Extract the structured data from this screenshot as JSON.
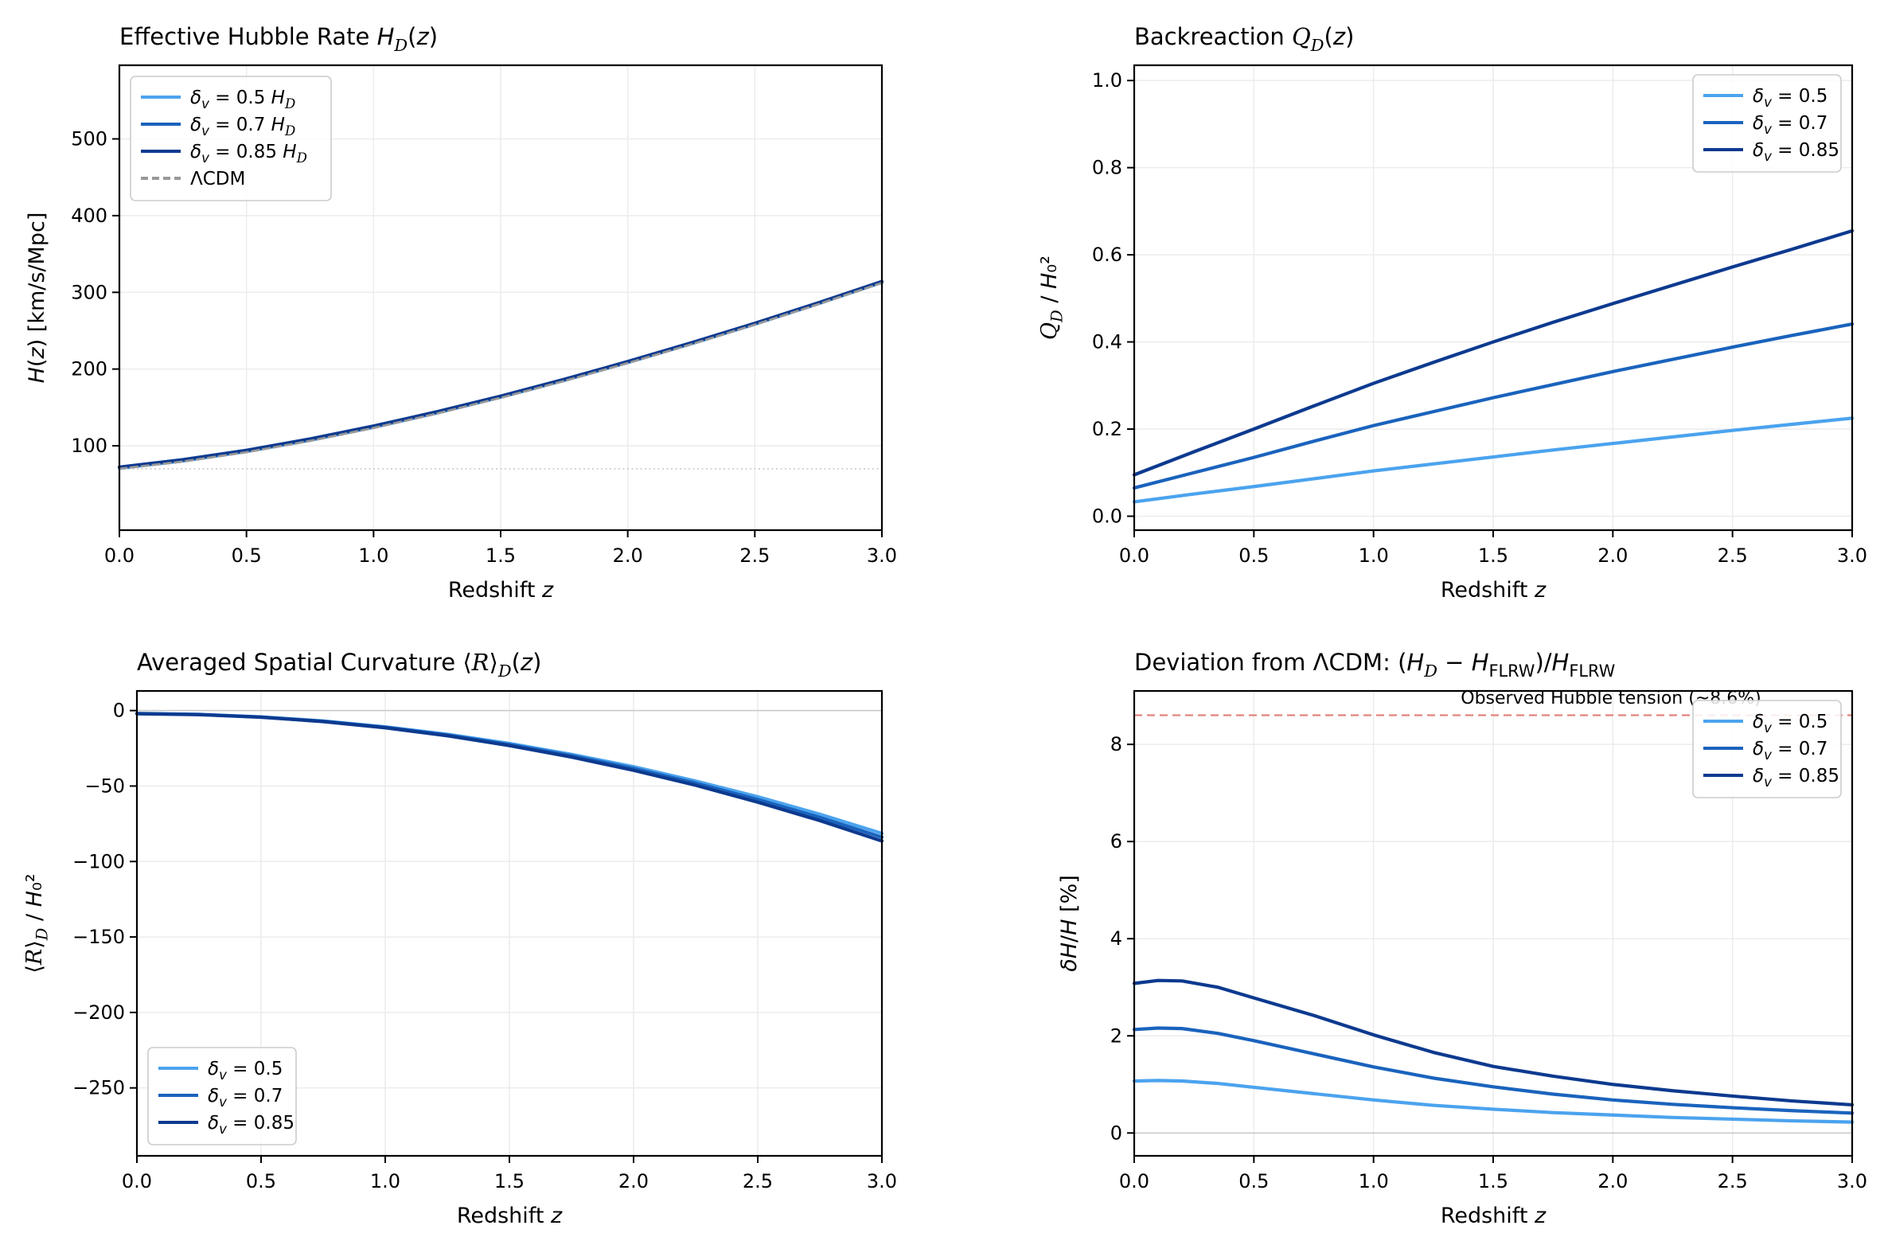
{
  "colors": {
    "light_blue": "#4ba3ee",
    "medium_blue": "#1a63bd",
    "dark_blue": "#0d3a8f",
    "lcdm_gray": "#999999",
    "grid": "#ececec",
    "spine": "#000000",
    "hline_h0": "#c9c9c9",
    "zero_line": "#c9c9c9",
    "tension_line": "#e2847d",
    "tension_text": "#c63a2c",
    "legend_border": "#cccccc",
    "legend_bg": "#ffffff"
  },
  "chart_data": [
    {
      "id": "hubble-rate",
      "type": "line",
      "title": [
        {
          "t": "Effective Hubble Rate "
        },
        {
          "t": "H",
          "it": 1
        },
        {
          "t": "D",
          "scr": 1,
          "sub": 1
        },
        {
          "t": "("
        },
        {
          "t": "z",
          "it": 1
        },
        {
          "t": ")"
        }
      ],
      "xlabel": [
        {
          "t": "Redshift "
        },
        {
          "t": "z",
          "it": 1
        }
      ],
      "ylabel": [
        {
          "t": "H",
          "it": 1
        },
        {
          "t": "("
        },
        {
          "t": "z",
          "it": 1
        },
        {
          "t": ") [km/s/Mpc]"
        }
      ],
      "xlim": [
        0,
        3
      ],
      "ylim": [
        -10,
        596
      ],
      "xticks": [
        {
          "v": 0,
          "l": "0.0"
        },
        {
          "v": 0.5,
          "l": "0.5"
        },
        {
          "v": 1,
          "l": "1.0"
        },
        {
          "v": 1.5,
          "l": "1.5"
        },
        {
          "v": 2,
          "l": "2.0"
        },
        {
          "v": 2.5,
          "l": "2.5"
        },
        {
          "v": 3,
          "l": "3.0"
        }
      ],
      "yticks": [
        {
          "v": 100,
          "l": "100"
        },
        {
          "v": 200,
          "l": "200"
        },
        {
          "v": 300,
          "l": "300"
        },
        {
          "v": 400,
          "l": "400"
        },
        {
          "v": 500,
          "l": "500"
        }
      ],
      "x": [
        0,
        0.25,
        0.5,
        0.75,
        1,
        1.25,
        1.5,
        1.75,
        2,
        2.25,
        2.5,
        2.75,
        3
      ],
      "series": [
        {
          "label": [
            {
              "t": "δ",
              "it": 1
            },
            {
              "t": "v",
              "it": 1,
              "sub": 1
            },
            {
              "t": " = 0.5 "
            },
            {
              "t": "H",
              "it": 1
            },
            {
              "t": "D",
              "scr": 1,
              "sub": 1
            }
          ],
          "color_ref": "light_blue",
          "width": 4.2,
          "y": [
            70.7,
            80.2,
            92.5,
            107.2,
            124.0,
            142.8,
            163.3,
            185.2,
            208.5,
            232.9,
            258.5,
            285.2,
            313.0
          ]
        },
        {
          "label": [
            {
              "t": "δ",
              "it": 1
            },
            {
              "t": "v",
              "it": 1,
              "sub": 1
            },
            {
              "t": " = 0.7 "
            },
            {
              "t": "H",
              "it": 1
            },
            {
              "t": "D",
              "scr": 1,
              "sub": 1
            }
          ],
          "color_ref": "medium_blue",
          "width": 4.2,
          "y": [
            71.5,
            81.1,
            93.3,
            108.0,
            124.9,
            143.6,
            164.0,
            185.9,
            209.1,
            233.6,
            259.1,
            285.8,
            313.6
          ]
        },
        {
          "label": [
            {
              "t": "δ",
              "it": 1
            },
            {
              "t": "v",
              "it": 1,
              "sub": 1
            },
            {
              "t": " = 0.85 "
            },
            {
              "t": "H",
              "it": 1
            },
            {
              "t": "D",
              "scr": 1,
              "sub": 1
            }
          ],
          "color_ref": "dark_blue",
          "width": 4.2,
          "y": [
            72.2,
            81.9,
            94.1,
            108.9,
            125.7,
            144.4,
            164.7,
            186.6,
            209.8,
            234.2,
            259.7,
            286.4,
            314.1
          ]
        },
        {
          "label": [
            {
              "t": "ΛCDM"
            }
          ],
          "color_ref": "lcdm_gray",
          "width": 2.8,
          "dash": [
            9,
            5
          ],
          "y": [
            70.0,
            79.4,
            91.6,
            106.3,
            123.2,
            142.0,
            162.5,
            184.4,
            207.7,
            232.2,
            257.8,
            284.5,
            312.3
          ]
        }
      ],
      "legend": {
        "loc": "tl",
        "entries": [
          0,
          1,
          2,
          3
        ]
      },
      "annotations": [
        {
          "kind": "hline",
          "y": 70,
          "layer": "under",
          "color_ref": "hline_h0",
          "width": 1.6,
          "dash": [
            2,
            3.5
          ]
        }
      ]
    },
    {
      "id": "backreaction",
      "type": "line",
      "title": [
        {
          "t": "Backreaction "
        },
        {
          "t": "Q",
          "scr": 1
        },
        {
          "t": "D",
          "scr": 1,
          "sub": 1
        },
        {
          "t": "("
        },
        {
          "t": "z",
          "it": 1
        },
        {
          "t": ")"
        }
      ],
      "xlabel": [
        {
          "t": "Redshift "
        },
        {
          "t": "z",
          "it": 1
        }
      ],
      "ylabel": [
        {
          "t": "Q",
          "scr": 1
        },
        {
          "t": "D",
          "scr": 1,
          "sub": 1
        },
        {
          "t": " / "
        },
        {
          "t": "H",
          "it": 1
        },
        {
          "t": "₀²"
        }
      ],
      "xlim": [
        0,
        3
      ],
      "ylim": [
        -0.032,
        1.035
      ],
      "xticks": [
        {
          "v": 0,
          "l": "0.0"
        },
        {
          "v": 0.5,
          "l": "0.5"
        },
        {
          "v": 1,
          "l": "1.0"
        },
        {
          "v": 1.5,
          "l": "1.5"
        },
        {
          "v": 2,
          "l": "2.0"
        },
        {
          "v": 2.5,
          "l": "2.5"
        },
        {
          "v": 3,
          "l": "3.0"
        }
      ],
      "yticks": [
        {
          "v": 0,
          "l": "0.0"
        },
        {
          "v": 0.2,
          "l": "0.2"
        },
        {
          "v": 0.4,
          "l": "0.4"
        },
        {
          "v": 0.6,
          "l": "0.6"
        },
        {
          "v": 0.8,
          "l": "0.8"
        },
        {
          "v": 1,
          "l": "1.0"
        }
      ],
      "x": [
        0,
        0.25,
        0.5,
        0.75,
        1,
        1.25,
        1.5,
        1.75,
        2,
        2.25,
        2.5,
        2.75,
        3
      ],
      "series": [
        {
          "label": [
            {
              "t": "δ",
              "it": 1
            },
            {
              "t": "v",
              "it": 1,
              "sub": 1
            },
            {
              "t": " = 0.5"
            }
          ],
          "color_ref": "light_blue",
          "width": 4.2,
          "y": [
            0.033,
            0.051,
            0.068,
            0.086,
            0.104,
            0.12,
            0.136,
            0.152,
            0.167,
            0.182,
            0.197,
            0.211,
            0.225
          ]
        },
        {
          "label": [
            {
              "t": "δ",
              "it": 1
            },
            {
              "t": "v",
              "it": 1,
              "sub": 1
            },
            {
              "t": " = 0.7"
            }
          ],
          "color_ref": "medium_blue",
          "width": 4.2,
          "y": [
            0.065,
            0.1,
            0.135,
            0.172,
            0.208,
            0.24,
            0.272,
            0.302,
            0.332,
            0.36,
            0.388,
            0.415,
            0.441
          ]
        },
        {
          "label": [
            {
              "t": "δ",
              "it": 1
            },
            {
              "t": "v",
              "it": 1,
              "sub": 1
            },
            {
              "t": " = 0.85"
            }
          ],
          "color_ref": "dark_blue",
          "width": 4.2,
          "y": [
            0.095,
            0.148,
            0.2,
            0.253,
            0.305,
            0.353,
            0.4,
            0.445,
            0.488,
            0.53,
            0.572,
            0.613,
            0.655
          ]
        }
      ],
      "legend": {
        "loc": "tr",
        "entries": [
          0,
          1,
          2
        ]
      },
      "annotations": []
    },
    {
      "id": "curvature",
      "type": "line",
      "title": [
        {
          "t": "Averaged Spatial Curvature ⟨"
        },
        {
          "t": "R",
          "scr": 1
        },
        {
          "t": "⟩"
        },
        {
          "t": "D",
          "scr": 1,
          "sub": 1
        },
        {
          "t": "("
        },
        {
          "t": "z",
          "it": 1
        },
        {
          "t": ")"
        }
      ],
      "xlabel": [
        {
          "t": "Redshift "
        },
        {
          "t": "z",
          "it": 1
        }
      ],
      "ylabel": [
        {
          "t": "⟨"
        },
        {
          "t": "R",
          "scr": 1
        },
        {
          "t": "⟩"
        },
        {
          "t": "D",
          "scr": 1,
          "sub": 1
        },
        {
          "t": " / "
        },
        {
          "t": "H",
          "it": 1
        },
        {
          "t": "₀²"
        }
      ],
      "xlim": [
        0,
        3
      ],
      "ylim": [
        -295,
        13
      ],
      "xticks": [
        {
          "v": 0,
          "l": "0.0"
        },
        {
          "v": 0.5,
          "l": "0.5"
        },
        {
          "v": 1,
          "l": "1.0"
        },
        {
          "v": 1.5,
          "l": "1.5"
        },
        {
          "v": 2,
          "l": "2.0"
        },
        {
          "v": 2.5,
          "l": "2.5"
        },
        {
          "v": 3,
          "l": "3.0"
        }
      ],
      "yticks": [
        {
          "v": 0,
          "l": "0"
        },
        {
          "v": -50,
          "l": "−50"
        },
        {
          "v": -100,
          "l": "−100"
        },
        {
          "v": -150,
          "l": "−150"
        },
        {
          "v": -200,
          "l": "−200"
        },
        {
          "v": -250,
          "l": "−250"
        }
      ],
      "x": [
        0,
        0.25,
        0.5,
        0.75,
        1,
        1.25,
        1.5,
        1.75,
        2,
        2.25,
        2.5,
        2.75,
        3
      ],
      "series": [
        {
          "label": [
            {
              "t": "δ",
              "it": 1
            },
            {
              "t": "v",
              "it": 1,
              "sub": 1
            },
            {
              "t": " = 0.5"
            }
          ],
          "color_ref": "light_blue",
          "width": 4.2,
          "y": [
            -1.9,
            -2.5,
            -4.2,
            -6.9,
            -10.8,
            -15.7,
            -21.8,
            -29.0,
            -37.2,
            -46.7,
            -57.1,
            -68.7,
            -81.4
          ]
        },
        {
          "label": [
            {
              "t": "δ",
              "it": 1
            },
            {
              "t": "v",
              "it": 1,
              "sub": 1
            },
            {
              "t": " = 0.7"
            }
          ],
          "color_ref": "medium_blue",
          "width": 4.2,
          "y": [
            -2.0,
            -2.6,
            -4.3,
            -7.1,
            -11.1,
            -16.2,
            -22.5,
            -29.9,
            -38.4,
            -48.1,
            -58.9,
            -70.8,
            -83.9
          ]
        },
        {
          "label": [
            {
              "t": "δ",
              "it": 1
            },
            {
              "t": "v",
              "it": 1,
              "sub": 1
            },
            {
              "t": " = 0.85"
            }
          ],
          "color_ref": "dark_blue",
          "width": 4.2,
          "y": [
            -2.1,
            -2.7,
            -4.4,
            -7.3,
            -11.4,
            -16.7,
            -23.2,
            -30.8,
            -39.6,
            -49.5,
            -60.7,
            -72.9,
            -86.4
          ]
        }
      ],
      "legend": {
        "loc": "bl",
        "entries": [
          0,
          1,
          2
        ]
      },
      "annotations": [
        {
          "kind": "hline",
          "y": 0,
          "layer": "under",
          "color_ref": "zero_line",
          "width": 1.5
        }
      ]
    },
    {
      "id": "deviation",
      "type": "line",
      "title": [
        {
          "t": "Deviation from ΛCDM: ("
        },
        {
          "t": "H",
          "it": 1
        },
        {
          "t": "D",
          "scr": 1,
          "sub": 1
        },
        {
          "t": " − "
        },
        {
          "t": "H",
          "it": 1
        },
        {
          "t": "FLRW",
          "sub": 1
        },
        {
          "t": ")/"
        },
        {
          "t": "H",
          "it": 1
        },
        {
          "t": "FLRW",
          "sub": 1
        }
      ],
      "xlabel": [
        {
          "t": "Redshift "
        },
        {
          "t": "z",
          "it": 1
        }
      ],
      "ylabel": [
        {
          "t": "δH",
          "it": 1
        },
        {
          "t": "/"
        },
        {
          "t": "H",
          "it": 1
        },
        {
          "t": " [%]"
        }
      ],
      "xlim": [
        0,
        3
      ],
      "ylim": [
        -0.47,
        9.1
      ],
      "xticks": [
        {
          "v": 0,
          "l": "0.0"
        },
        {
          "v": 0.5,
          "l": "0.5"
        },
        {
          "v": 1,
          "l": "1.0"
        },
        {
          "v": 1.5,
          "l": "1.5"
        },
        {
          "v": 2,
          "l": "2.0"
        },
        {
          "v": 2.5,
          "l": "2.5"
        },
        {
          "v": 3,
          "l": "3.0"
        }
      ],
      "yticks": [
        {
          "v": 0,
          "l": "0"
        },
        {
          "v": 2,
          "l": "2"
        },
        {
          "v": 4,
          "l": "4"
        },
        {
          "v": 6,
          "l": "6"
        },
        {
          "v": 8,
          "l": "8"
        }
      ],
      "x": [
        0,
        0.1,
        0.2,
        0.35,
        0.5,
        0.75,
        1,
        1.25,
        1.5,
        1.75,
        2,
        2.25,
        2.5,
        2.75,
        3
      ],
      "series": [
        {
          "label": [
            {
              "t": "δ",
              "it": 1
            },
            {
              "t": "v",
              "it": 1,
              "sub": 1
            },
            {
              "t": " = 0.5"
            }
          ],
          "color_ref": "light_blue",
          "width": 4.2,
          "y": [
            1.07,
            1.08,
            1.07,
            1.02,
            0.94,
            0.81,
            0.68,
            0.57,
            0.49,
            0.42,
            0.37,
            0.32,
            0.285,
            0.25,
            0.225
          ]
        },
        {
          "label": [
            {
              "t": "δ",
              "it": 1
            },
            {
              "t": "v",
              "it": 1,
              "sub": 1
            },
            {
              "t": " = 0.7"
            }
          ],
          "color_ref": "medium_blue",
          "width": 4.2,
          "y": [
            2.13,
            2.16,
            2.15,
            2.05,
            1.9,
            1.63,
            1.36,
            1.13,
            0.95,
            0.8,
            0.68,
            0.59,
            0.52,
            0.46,
            0.41
          ]
        },
        {
          "label": [
            {
              "t": "δ",
              "it": 1
            },
            {
              "t": "v",
              "it": 1,
              "sub": 1
            },
            {
              "t": " = 0.85"
            }
          ],
          "color_ref": "dark_blue",
          "width": 4.2,
          "y": [
            3.08,
            3.14,
            3.13,
            3.0,
            2.78,
            2.42,
            2.02,
            1.66,
            1.37,
            1.17,
            1.0,
            0.87,
            0.76,
            0.66,
            0.58
          ]
        }
      ],
      "legend": {
        "loc": "tr",
        "entries": [
          0,
          1,
          2
        ]
      },
      "annotations": [
        {
          "kind": "hline",
          "y": 0,
          "layer": "under",
          "color_ref": "zero_line",
          "width": 1.5
        },
        {
          "kind": "hline",
          "y": 8.6,
          "layer": "over",
          "color_ref": "tension_line",
          "width": 2.2,
          "dash": [
            10,
            6
          ]
        },
        {
          "kind": "text",
          "x": 2.62,
          "y": 8.84,
          "align": "end",
          "color_ref": "tension_text",
          "size": 22,
          "label": [
            {
              "t": "Observed Hubble tension (~8.6%)"
            }
          ]
        }
      ]
    }
  ]
}
